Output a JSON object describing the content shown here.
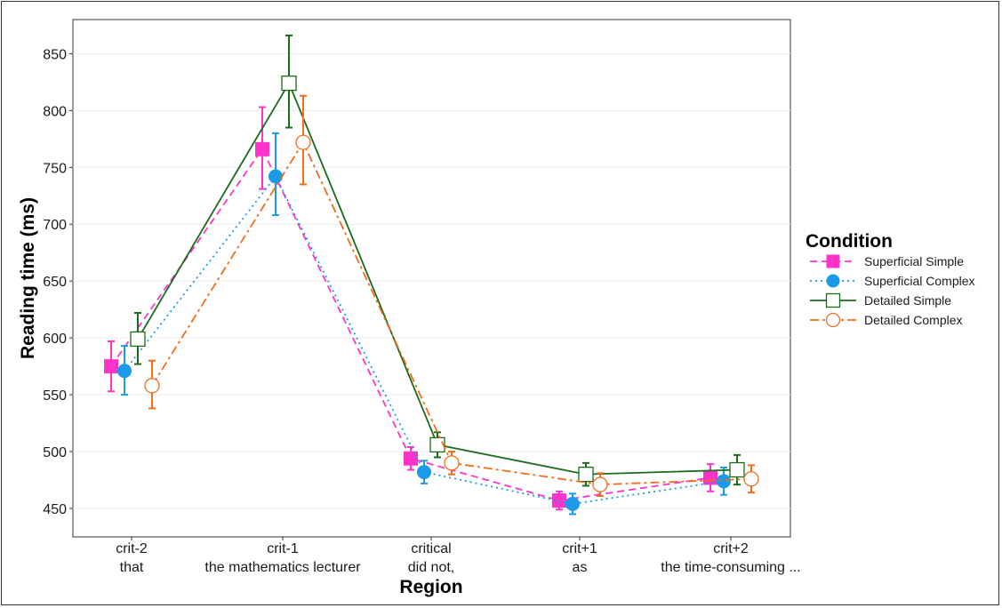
{
  "chart_data": {
    "type": "line",
    "title": "",
    "xlabel": "Region",
    "ylabel": "Reading time (ms)",
    "ylim": [
      425,
      880
    ],
    "yticks": [
      450,
      500,
      550,
      600,
      650,
      700,
      750,
      800,
      850
    ],
    "grid": true,
    "legend_title": "Condition",
    "legend_position": "right",
    "categories": [
      {
        "line1": "crit-2",
        "line2": "that"
      },
      {
        "line1": "crit-1",
        "line2": "the mathematics lecturer"
      },
      {
        "line1": "critical",
        "line2": "did not,"
      },
      {
        "line1": "crit+1",
        "line2": "as"
      },
      {
        "line1": "crit+2",
        "line2": "the time-consuming ..."
      }
    ],
    "series": [
      {
        "name": "Superficial Simple",
        "color": "#ff33cc",
        "marker": "square-filled",
        "linestyle": "dashed",
        "values": [
          575,
          766,
          494,
          457,
          477
        ],
        "lower": [
          553,
          731,
          484,
          449,
          465
        ],
        "upper": [
          597,
          803,
          504,
          465,
          489
        ]
      },
      {
        "name": "Superficial Complex",
        "color": "#1a9be8",
        "marker": "circle-filled",
        "linestyle": "dotted",
        "values": [
          571,
          742,
          482,
          454,
          474
        ],
        "lower": [
          550,
          708,
          472,
          445,
          462
        ],
        "upper": [
          593,
          780,
          492,
          463,
          486
        ]
      },
      {
        "name": "Detailed Simple",
        "color": "#1a6b1a",
        "marker": "square-open",
        "linestyle": "solid",
        "values": [
          599,
          824,
          506,
          480,
          484
        ],
        "lower": [
          577,
          785,
          495,
          470,
          471
        ],
        "upper": [
          622,
          866,
          517,
          490,
          497
        ]
      },
      {
        "name": "Detailed Complex",
        "color": "#ef6d1b",
        "marker": "circle-open",
        "linestyle": "dashdot",
        "values": [
          558,
          772,
          490,
          471,
          476
        ],
        "lower": [
          538,
          735,
          480,
          461,
          464
        ],
        "upper": [
          580,
          813,
          500,
          481,
          488
        ]
      }
    ]
  }
}
